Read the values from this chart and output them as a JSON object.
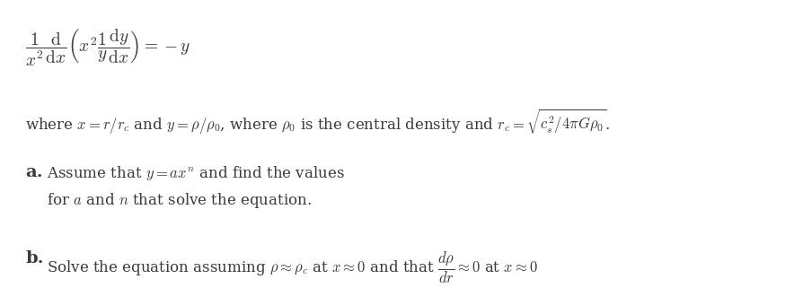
{
  "background_color": "#ffffff",
  "figsize": [
    8.84,
    3.21
  ],
  "dpi": 100,
  "line1": "$\\dfrac{1}{x^2}\\dfrac{\\mathrm{d}}{\\mathrm{d}x}\\left(x^2\\dfrac{1}{y}\\dfrac{\\mathrm{d}y}{\\mathrm{d}x}\\right) = -y$",
  "line2": "where $x = r/r_c$ and $y = \\rho/\\rho_0$, where $\\rho_0$ is the central density and $r_c = \\sqrt{c_s^2/4\\pi G\\rho_0}$.",
  "line3a_label": "\\textbf{a.}",
  "line3a_text": " Assume that $y = ax^n$ and find the values",
  "line4a_text": "for $a$ and $n$ that solve the equation.",
  "line5b_label": "\\textbf{b.}",
  "line5b_text": " Solve the equation assuming $\\rho \\approx \\rho_c$ at $x \\approx 0$ and that $\\dfrac{d\\rho}{dr} \\approx 0$ at $x \\approx 0$",
  "text_color": "#3a3a3a",
  "fontsize_eq": 14,
  "fontsize_text": 12,
  "fontsize_label": 14
}
